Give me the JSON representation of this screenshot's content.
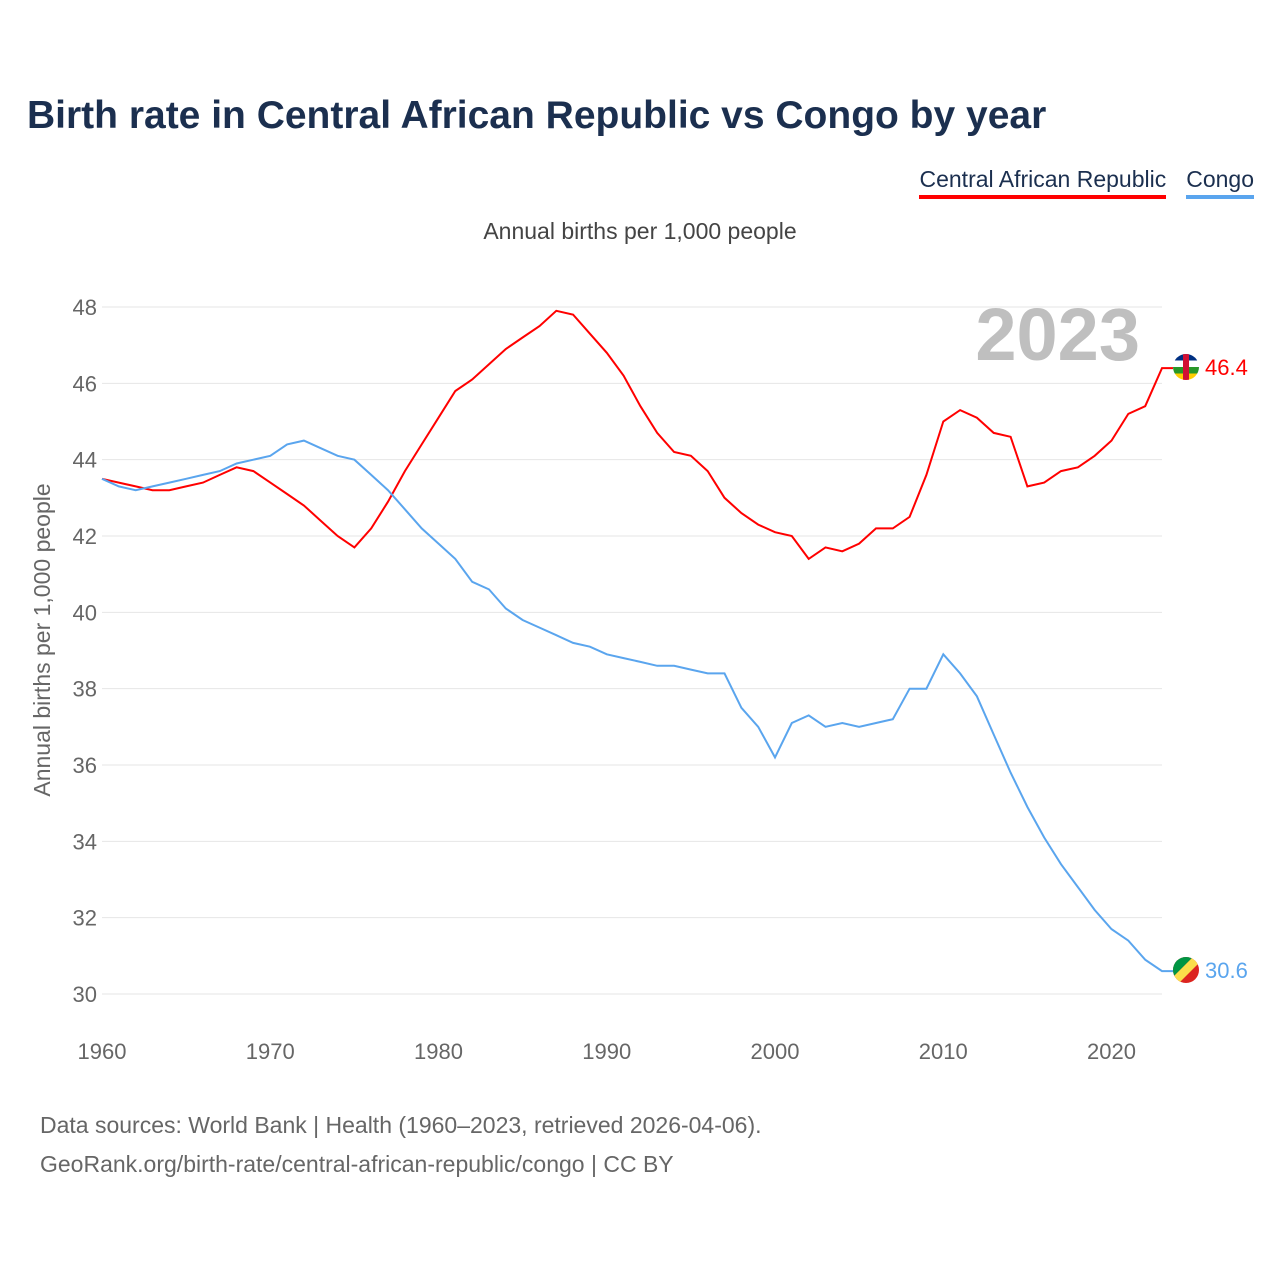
{
  "title": "Birth rate in Central African Republic vs Congo by year",
  "subtitle": "Annual births per 1,000 people",
  "footer": {
    "line1": "Data sources: World Bank | Health (1960–2023, retrieved 2026-04-06).",
    "line2": "GeoRank.org/birth-rate/central-african-republic/congo | CC BY"
  },
  "chart_data": {
    "type": "line",
    "title": "Birth rate in Central African Republic vs Congo by year",
    "ylabel": "Annual births per 1,000 people",
    "xlabel": "",
    "ylim": [
      30,
      48
    ],
    "xlim": [
      1960,
      2023
    ],
    "yticks": [
      "30",
      "32",
      "34",
      "36",
      "38",
      "40",
      "42",
      "44",
      "46",
      "48"
    ],
    "xticks": [
      "1960",
      "1970",
      "1980",
      "1990",
      "2000",
      "2010",
      "2020"
    ],
    "year_label": "2023",
    "legend_position": "top-right",
    "x": [
      1960,
      1961,
      1962,
      1963,
      1964,
      1965,
      1966,
      1967,
      1968,
      1969,
      1970,
      1971,
      1972,
      1973,
      1974,
      1975,
      1976,
      1977,
      1978,
      1979,
      1980,
      1981,
      1982,
      1983,
      1984,
      1985,
      1986,
      1987,
      1988,
      1989,
      1990,
      1991,
      1992,
      1993,
      1994,
      1995,
      1996,
      1997,
      1998,
      1999,
      2000,
      2001,
      2002,
      2003,
      2004,
      2005,
      2006,
      2007,
      2008,
      2009,
      2010,
      2011,
      2012,
      2013,
      2014,
      2015,
      2016,
      2017,
      2018,
      2019,
      2020,
      2021,
      2022,
      2023
    ],
    "series": [
      {
        "name": "Central African Republic",
        "color": "#ff0000",
        "end_label": "46.4",
        "flag": "central-african-republic-flag",
        "values": [
          43.5,
          43.4,
          43.3,
          43.2,
          43.2,
          43.3,
          43.4,
          43.6,
          43.8,
          43.7,
          43.4,
          43.1,
          42.8,
          42.4,
          42.0,
          41.7,
          42.2,
          42.9,
          43.7,
          44.4,
          45.1,
          45.8,
          46.1,
          46.5,
          46.9,
          47.2,
          47.5,
          47.9,
          47.8,
          47.3,
          46.8,
          46.2,
          45.4,
          44.7,
          44.2,
          44.1,
          43.7,
          43.0,
          42.6,
          42.3,
          42.1,
          42.0,
          41.4,
          41.7,
          41.6,
          41.8,
          42.2,
          42.2,
          42.5,
          43.6,
          45.0,
          45.3,
          45.1,
          44.7,
          44.6,
          43.3,
          43.4,
          43.7,
          43.8,
          44.1,
          44.5,
          45.2,
          45.4,
          46.4
        ]
      },
      {
        "name": "Congo",
        "color": "#5aa5ee",
        "end_label": "30.6",
        "flag": "congo-flag",
        "values": [
          43.5,
          43.3,
          43.2,
          43.3,
          43.4,
          43.5,
          43.6,
          43.7,
          43.9,
          44.0,
          44.1,
          44.4,
          44.5,
          44.3,
          44.1,
          44.0,
          43.6,
          43.2,
          42.7,
          42.2,
          41.8,
          41.4,
          40.8,
          40.6,
          40.1,
          39.8,
          39.6,
          39.4,
          39.2,
          39.1,
          38.9,
          38.8,
          38.7,
          38.6,
          38.6,
          38.5,
          38.4,
          38.4,
          37.5,
          37.0,
          36.2,
          37.1,
          37.3,
          37.0,
          37.1,
          37.0,
          37.1,
          37.2,
          38.0,
          38.0,
          38.9,
          38.4,
          37.8,
          36.8,
          35.8,
          34.9,
          34.1,
          33.4,
          32.8,
          32.2,
          31.7,
          31.4,
          30.9,
          30.6
        ]
      }
    ]
  }
}
